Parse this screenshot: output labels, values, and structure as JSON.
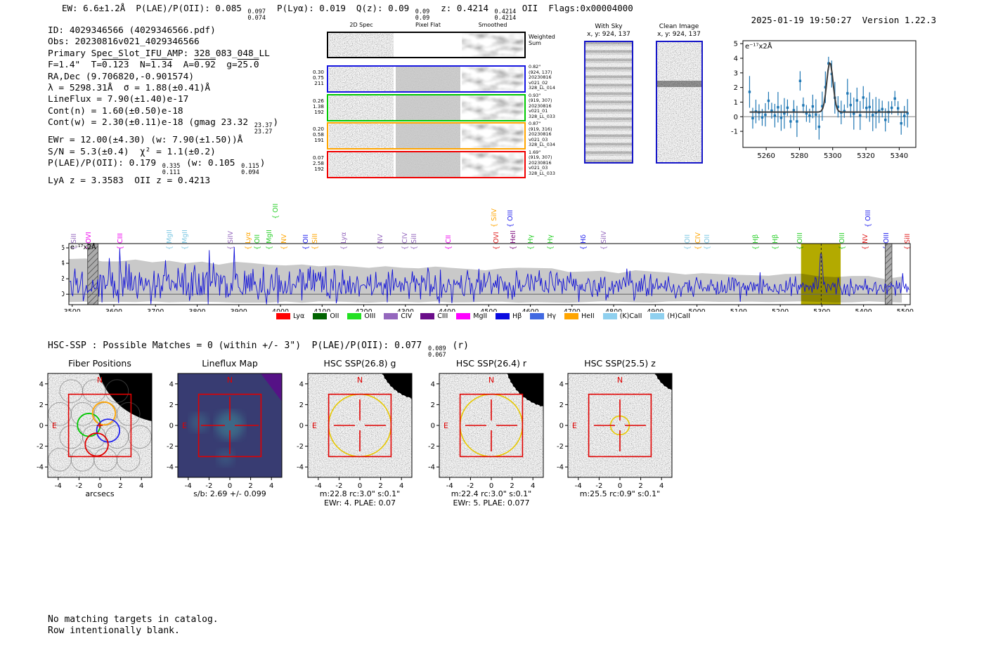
{
  "header": {
    "segments": [
      {
        "t": "EW: 6.6±1.2Å  P(LAE)/P(OII): 0.085 "
      },
      {
        "hi": "0.097",
        "lo": "0.074"
      },
      {
        "t": "  P(Lyα): 0.019  Q(z): 0.09 "
      },
      {
        "hi": "0.09",
        "lo": "0.09"
      },
      {
        "t": "  z: 0.4214 "
      },
      {
        "hi": "0.4214",
        "lo": "0.4214"
      },
      {
        "t": " OII  Flags:0x00004000"
      }
    ],
    "timestamp": "2025-01-19 19:50:27",
    "version": "Version 1.22.3"
  },
  "info": {
    "lines": [
      [
        {
          "t": "ID: 4029346566 (4029346566.pdf)"
        }
      ],
      [
        {
          "t": "Obs: 20230816v021_4029346566"
        }
      ],
      [
        {
          "t": "Primary Spec_Slot_IFU_AMP: 328_083_048_LL"
        }
      ],
      [
        {
          "t": "F=1.4\"  T="
        },
        {
          "t": "0.123",
          "ov": true
        },
        {
          "t": "  N="
        },
        {
          "t": "1.34",
          "ov": true
        },
        {
          "t": "  A="
        },
        {
          "t": "0.92",
          "ov": true
        },
        {
          "t": "  g="
        },
        {
          "t": "25.0",
          "ov": true
        }
      ],
      [
        {
          "t": "RA,Dec (9.706820,-0.901574)"
        }
      ],
      [
        {
          "t": "λ = 5298.31Å  σ = 1.88(±0.41)Å"
        }
      ],
      [
        {
          "t": "LineFlux = 7.90(±1.40)e-17"
        }
      ],
      [
        {
          "t": "Cont(n) = 1.60(±0.50)e-18"
        }
      ],
      [
        {
          "t": "Cont(w) = 2.30(±0.11)e-18 (gmag 23.32 "
        },
        {
          "hi": "23.37",
          "lo": "23.27"
        },
        {
          "t": ")"
        }
      ],
      [
        {
          "t": "EWr = 12.00(±4.30) (w: 7.90(±1.50))Å"
        }
      ],
      [
        {
          "t": "S/N = 5.3(±0.4)  χ² = 1.1(±0.2)"
        }
      ],
      [
        {
          "t": "P(LAE)/P(OII): 0.179 "
        },
        {
          "hi": "0.335",
          "lo": "0.111"
        },
        {
          "t": " (w: 0.105 "
        },
        {
          "hi": "0.115",
          "lo": "0.094"
        },
        {
          "t": ")"
        }
      ],
      [
        {
          "t": "LyA z = 3.3583  OII z = 0.4213"
        }
      ]
    ]
  },
  "spec2d": {
    "col_titles": [
      "2D Spec",
      "Pixel Flat",
      "Smoothed"
    ],
    "weighted_sum_lines": [
      "Weighted",
      "Sum"
    ],
    "rows": [
      {
        "color": "#1515e0",
        "left": [
          "0.30",
          "0.75",
          "211"
        ],
        "right": [
          "0.82\"",
          "(924, 137)",
          "20230816",
          "v021_02",
          "328_LL_014"
        ]
      },
      {
        "color": "#00c800",
        "left": [
          "0.26",
          "1.38",
          "192"
        ],
        "right": [
          "0.93\"",
          "(919, 307)",
          "20230816",
          "v021_01",
          "328_LL_033"
        ]
      },
      {
        "color": "#ffa500",
        "left": [
          "0.20",
          "0.58",
          "191"
        ],
        "right": [
          "0.87\"",
          "(919, 316)",
          "20230816",
          "v021_03",
          "328_LL_034"
        ]
      },
      {
        "color": "#f00000",
        "left": [
          "0.07",
          "2.58",
          "192"
        ],
        "right": [
          "1.69\"",
          "(919, 307)",
          "20230816",
          "v021_03",
          "328_LL_033"
        ]
      }
    ]
  },
  "sky_panels": [
    {
      "title": "With Sky",
      "subtitle": "x, y: 924, 137"
    },
    {
      "title": "Clean Image",
      "subtitle": "x, y: 924, 137"
    }
  ],
  "hsc": {
    "segments": [
      {
        "t": "HSC-SSP : Possible Matches = 0 (within +/- 3\")  P(LAE)/P(OII): 0.077 "
      },
      {
        "hi": "0.089",
        "lo": "0.067"
      },
      {
        "t": " (r)"
      }
    ]
  },
  "footer": {
    "lines": [
      "No matching targets in catalog.",
      "Row intentionally blank."
    ]
  },
  "chart_data": [
    {
      "id": "zoom_line_fit_plot",
      "type": "scatter",
      "annotation": "e⁻¹⁷x2Å",
      "xlim": [
        5246,
        5350
      ],
      "ylim": [
        -2.1,
        5.2
      ],
      "xticks": [
        5260,
        5280,
        5300,
        5320,
        5340
      ],
      "yticks": [
        -1,
        0,
        1,
        2,
        3,
        4,
        5
      ],
      "fit": {
        "center": 5298.31,
        "sigma": 1.88,
        "amplitude": 3.4,
        "baseline": 0.32
      },
      "outlier": {
        "x": 5280.5,
        "y": 2.45
      },
      "marker_color": "#1f77b4",
      "fit_color": "#3a3a3a",
      "grid": false
    },
    {
      "id": "full_spectrum",
      "type": "line",
      "annotation": "e⁻¹⁷x2Å",
      "xlim": [
        3492,
        5512
      ],
      "ylim": [
        -1.35,
        6.55
      ],
      "xticks": [
        3500,
        3600,
        3700,
        3800,
        3900,
        4000,
        4100,
        4200,
        4300,
        4400,
        4500,
        4600,
        4700,
        4800,
        4900,
        5000,
        5100,
        5200,
        5300,
        5400,
        5500
      ],
      "yticks": [
        0,
        2,
        4,
        6
      ],
      "line_color": "#1212d8",
      "noise_band_color": "#c9c9c9",
      "envelope": {
        "left_top": 4.5,
        "right_top": 2.1,
        "bottom": -1.0
      },
      "spikes": [
        {
          "x": 3615,
          "y": 5.9
        },
        {
          "x": 3830,
          "y": 5.7
        }
      ],
      "emission_peak": {
        "center": 5298.31,
        "sigma_angstrom": 3.2,
        "height": 4.1
      },
      "highlight_band": {
        "x0": 5250,
        "x1": 5345,
        "color": "#b3aa00"
      },
      "dashed_line_x": 5298.31,
      "hatched_bands": [
        [
          3537,
          3562
        ],
        [
          5452,
          5468
        ]
      ],
      "line_labels": [
        {
          "name": "SiII",
          "wave": 3508,
          "color": "#9467bd",
          "tier": 0
        },
        {
          "name": "OVI",
          "wave": 3542,
          "color": "#ee00ee",
          "tier": 0
        },
        {
          "name": "CIII",
          "wave": 3618,
          "color": "#ee00ee",
          "tier": 0
        },
        {
          "name": "MgII",
          "wave": 3736,
          "color": "#7ec8e3",
          "tier": 0
        },
        {
          "name": "MgII",
          "wave": 3773,
          "color": "#7ec8e3",
          "tier": 0
        },
        {
          "name": "SiIV",
          "wave": 3883,
          "color": "#9467bd",
          "tier": 0
        },
        {
          "name": "Lyα",
          "wave": 3925,
          "color": "#ffa500",
          "tier": 0
        },
        {
          "name": "OII",
          "wave": 3947,
          "color": "#2fd02f",
          "tier": 0
        },
        {
          "name": "MgII",
          "wave": 3976,
          "color": "#2fd02f",
          "tier": 0
        },
        {
          "name": "OII",
          "wave": 3992,
          "color": "#2fd02f",
          "tier": 2
        },
        {
          "name": "NV",
          "wave": 4012,
          "color": "#ffa500",
          "tier": 0
        },
        {
          "name": "OII",
          "wave": 4064,
          "color": "#2222ee",
          "tier": 0
        },
        {
          "name": "SiII",
          "wave": 4086,
          "color": "#ffa500",
          "tier": 0
        },
        {
          "name": "Lyα",
          "wave": 4156,
          "color": "#9467bd",
          "tier": 0
        },
        {
          "name": "NV",
          "wave": 4243,
          "color": "#9467bd",
          "tier": 0
        },
        {
          "name": "CIV",
          "wave": 4302,
          "color": "#9467bd",
          "tier": 0
        },
        {
          "name": "SiII",
          "wave": 4324,
          "color": "#9467bd",
          "tier": 0
        },
        {
          "name": "CII",
          "wave": 4406,
          "color": "#ee00ee",
          "tier": 0
        },
        {
          "name": "SiIV",
          "wave": 4516,
          "color": "#ffa500",
          "tier": 1
        },
        {
          "name": "OVI",
          "wave": 4521,
          "color": "#e02020",
          "tier": 0
        },
        {
          "name": "OIII",
          "wave": 4556,
          "color": "#2222ee",
          "tier": 1
        },
        {
          "name": "HeII",
          "wave": 4562,
          "color": "#7b0a7b",
          "tier": 0
        },
        {
          "name": "Hγ",
          "wave": 4604,
          "color": "#2fd02f",
          "tier": 0
        },
        {
          "name": "Hγ",
          "wave": 4651,
          "color": "#2fd02f",
          "tier": 0
        },
        {
          "name": "Hδ",
          "wave": 4730,
          "color": "#2222ee",
          "tier": 0
        },
        {
          "name": "SiIV",
          "wave": 4779,
          "color": "#9467bd",
          "tier": 0
        },
        {
          "name": "OII",
          "wave": 4980,
          "color": "#7ec8e3",
          "tier": 0
        },
        {
          "name": "CIV",
          "wave": 5005,
          "color": "#ffa500",
          "tier": 0
        },
        {
          "name": "OII",
          "wave": 5027,
          "color": "#7ec8e3",
          "tier": 0
        },
        {
          "name": "Hβ",
          "wave": 5144,
          "color": "#2fd02f",
          "tier": 0
        },
        {
          "name": "Hβ",
          "wave": 5191,
          "color": "#2fd02f",
          "tier": 0
        },
        {
          "name": "OIII",
          "wave": 5250,
          "color": "#2fd02f",
          "tier": 0
        },
        {
          "name": "OIII",
          "wave": 5351,
          "color": "#2fd02f",
          "tier": 0
        },
        {
          "name": "NV",
          "wave": 5407,
          "color": "#e02020",
          "tier": 0
        },
        {
          "name": "OIII",
          "wave": 5414,
          "color": "#2222ee",
          "tier": 1
        },
        {
          "name": "OIII",
          "wave": 5458,
          "color": "#2222ee",
          "tier": 0
        },
        {
          "name": "SiII",
          "wave": 5508,
          "color": "#e02020",
          "tier": 0
        }
      ],
      "legend": [
        {
          "label": "Lyα",
          "color": "#ff0000"
        },
        {
          "label": "OII",
          "color": "#006400"
        },
        {
          "label": "OIII",
          "color": "#22e022"
        },
        {
          "label": "CIV",
          "color": "#9467bd"
        },
        {
          "label": "CIII",
          "color": "#6a0d8a"
        },
        {
          "label": "MgII",
          "color": "#ff00ff"
        },
        {
          "label": "Hβ",
          "color": "#0a0ae0"
        },
        {
          "label": "Hγ",
          "color": "#4169e1"
        },
        {
          "label": "HeII",
          "color": "#ffa500"
        },
        {
          "label": "(K)CaII",
          "color": "#8fd0ef"
        },
        {
          "label": "(H)CaII",
          "color": "#8fd0ef"
        }
      ]
    },
    {
      "id": "cutouts",
      "type": "heatmap",
      "ticks": [
        -4,
        -2,
        0,
        2,
        4
      ],
      "compass": {
        "north": "N",
        "east": "E"
      },
      "panels": [
        {
          "title": "Fiber Positions",
          "xlabel": "arcsecs",
          "note": "",
          "kind": "fiber",
          "box_arcsec": 3
        },
        {
          "title": "Lineflux Map",
          "xlabel": "s/b: 2.69 +/- 0.099",
          "note": "",
          "kind": "lineflux",
          "box_arcsec": 3
        },
        {
          "title": "HSC SSP(26.8) g",
          "xlabel": "m:22.8 rc:3.0\"  s:0.1\"",
          "note": "EWr: 4. PLAE: 0.07",
          "kind": "catalog",
          "aperture_radius": 3.0,
          "box_arcsec": 3
        },
        {
          "title": "HSC SSP(26.4) r",
          "xlabel": "m:22.4 rc:3.0\"  s:0.1\"",
          "note": "EWr: 5. PLAE: 0.077",
          "kind": "catalog",
          "aperture_radius": 3.0,
          "box_arcsec": 3
        },
        {
          "title": "HSC SSP(25.5) z",
          "xlabel": "m:25.5 rc:0.9\"  s:0.1\"",
          "note": "",
          "kind": "catalog_small",
          "aperture_radius": 0.9,
          "box_arcsec": 3
        }
      ]
    }
  ],
  "colors": {
    "accent_red": "#e00000",
    "aperture_yellow": "#e6c800",
    "sky_border_blue": "#1515c8",
    "highlight_olive": "#b3aa00"
  }
}
